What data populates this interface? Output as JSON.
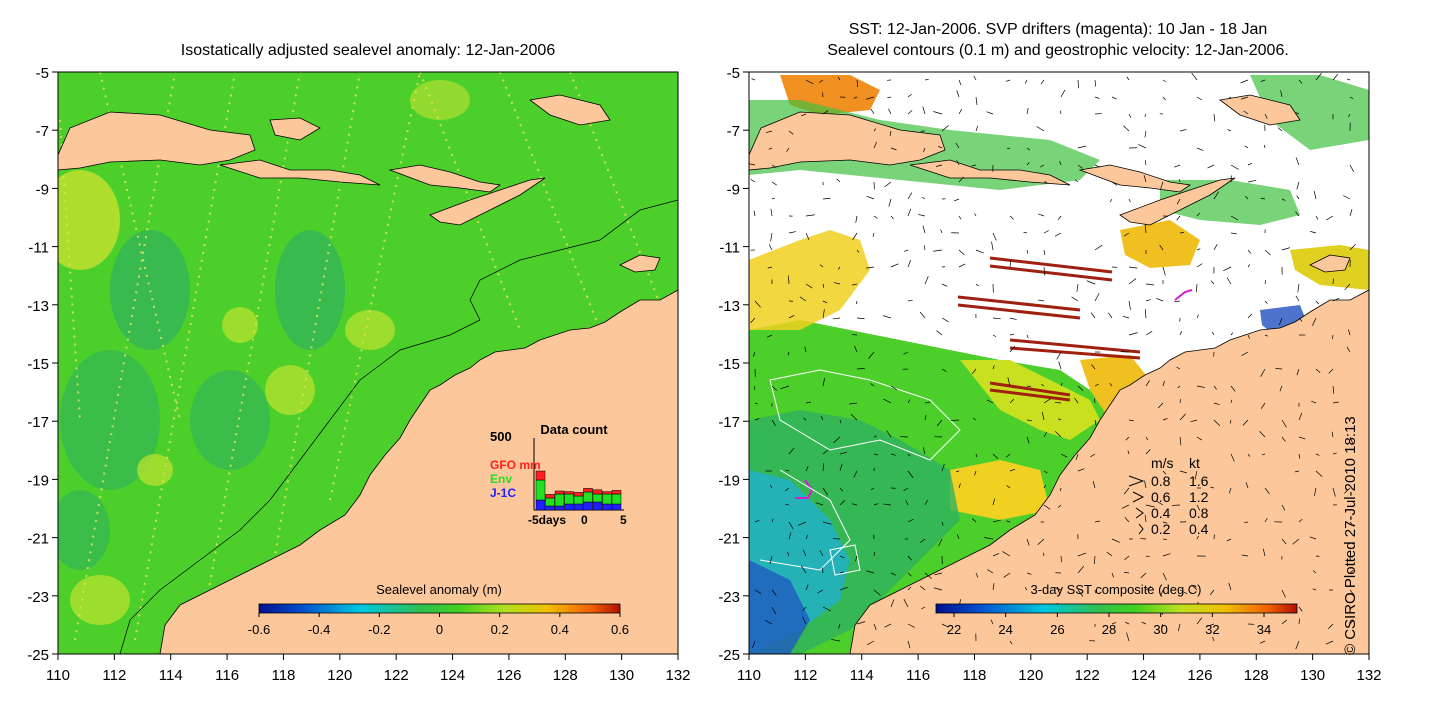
{
  "left_panel": {
    "title": "Isostatically adjusted sealevel anomaly: 12-Jan-2006",
    "y_ticks": [
      "-5",
      "-7",
      "-9",
      "-11",
      "-13",
      "-15",
      "-17",
      "-19",
      "-21",
      "-23",
      "-25"
    ],
    "x_ticks": [
      "110",
      "112",
      "114",
      "116",
      "118",
      "120",
      "122",
      "124",
      "126",
      "128",
      "130",
      "132"
    ],
    "colorbar": {
      "label": "Sealevel anomaly (m)",
      "ticks": [
        "-0.6",
        "-0.4",
        "-0.2",
        "0",
        "0.2",
        "0.4",
        "0.6"
      ]
    },
    "data_count": {
      "title": "Data count",
      "y_max": "500",
      "legend": [
        "GFO mm",
        "Env",
        "J-1C"
      ],
      "x_labels": [
        "-5days",
        "0",
        "5"
      ],
      "colors": {
        "gfo": "#ff2020",
        "env": "#20e020",
        "j1c": "#2020ff"
      }
    }
  },
  "right_panel": {
    "title_line1": "SST: 12-Jan-2006. SVP drifters (magenta): 10 Jan - 18 Jan",
    "title_line2": "Sealevel contours (0.1 m) and geostrophic velocity: 12-Jan-2006.",
    "y_ticks": [
      "-5",
      "-7",
      "-9",
      "-11",
      "-13",
      "-15",
      "-17",
      "-19",
      "-21",
      "-23",
      "-25"
    ],
    "x_ticks": [
      "110",
      "112",
      "114",
      "116",
      "118",
      "120",
      "122",
      "124",
      "126",
      "128",
      "130",
      "132"
    ],
    "colorbar": {
      "label": "3-day SST composite (deg C)",
      "ticks": [
        "22",
        "24",
        "26",
        "28",
        "30",
        "32",
        "34"
      ]
    },
    "velocity_legend": {
      "header_ms": "m/s",
      "header_kt": "kt",
      "rows": [
        {
          "ms": "0.8",
          "kt": "1.6"
        },
        {
          "ms": "0.6",
          "kt": "1.2"
        },
        {
          "ms": "0.4",
          "kt": "0.8"
        },
        {
          "ms": "0.2",
          "kt": "0.4"
        }
      ]
    }
  },
  "credit": "© CSIRO Plotted 27-Jul-2010 18:13",
  "colors": {
    "land": "#fcc79a",
    "sea_green": "#4ccf2a",
    "sst_white": "#ffffff",
    "drifter_magenta": "#d020d0",
    "track_brown": "#a02010"
  }
}
